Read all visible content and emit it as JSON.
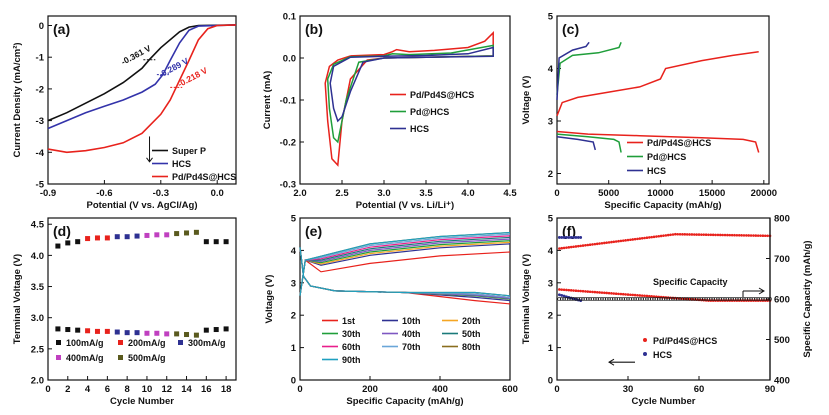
{
  "chart_data": [
    {
      "id": "a",
      "panel_label": "(a)",
      "type": "line",
      "xlabel": "Potential (V vs. AgCl/Ag)",
      "ylabel": "Current Density (mA/cm²)",
      "xlim": [
        -0.9,
        0.1
      ],
      "ylim": [
        -5,
        0.3
      ],
      "xticks": [
        -0.9,
        -0.6,
        -0.3,
        0.0
      ],
      "xtick_labels": [
        "-0.9",
        "-0.6",
        "-0.3",
        "0.0"
      ],
      "yticks": [
        0,
        -1,
        -2,
        -3,
        -4,
        -5
      ],
      "ytick_labels": [
        "0",
        "-1",
        "-2",
        "-3",
        "-4",
        "-5"
      ],
      "legend_position": "bottom-right",
      "series": [
        {
          "name": "Super P",
          "color": "#111111",
          "points": [
            [
              -0.9,
              -3.0
            ],
            [
              -0.8,
              -2.75
            ],
            [
              -0.7,
              -2.45
            ],
            [
              -0.6,
              -2.15
            ],
            [
              -0.5,
              -1.8
            ],
            [
              -0.4,
              -1.35
            ],
            [
              -0.361,
              -1.08
            ],
            [
              -0.3,
              -0.7
            ],
            [
              -0.2,
              -0.2
            ],
            [
              -0.15,
              -0.05
            ],
            [
              -0.1,
              0.0
            ],
            [
              0.1,
              0.02
            ]
          ]
        },
        {
          "name": "HCS",
          "color": "#3333aa",
          "points": [
            [
              -0.9,
              -3.25
            ],
            [
              -0.8,
              -3.0
            ],
            [
              -0.7,
              -2.75
            ],
            [
              -0.6,
              -2.55
            ],
            [
              -0.5,
              -2.35
            ],
            [
              -0.4,
              -2.1
            ],
            [
              -0.33,
              -1.85
            ],
            [
              -0.289,
              -1.55
            ],
            [
              -0.25,
              -1.1
            ],
            [
              -0.2,
              -0.55
            ],
            [
              -0.15,
              -0.15
            ],
            [
              -0.1,
              -0.02
            ],
            [
              0.1,
              0.02
            ]
          ]
        },
        {
          "name": "Pd/Pd4S@HCS",
          "color": "#e8221c",
          "points": [
            [
              -0.9,
              -3.9
            ],
            [
              -0.8,
              -4.0
            ],
            [
              -0.7,
              -3.95
            ],
            [
              -0.6,
              -3.85
            ],
            [
              -0.5,
              -3.7
            ],
            [
              -0.4,
              -3.4
            ],
            [
              -0.3,
              -2.8
            ],
            [
              -0.25,
              -2.35
            ],
            [
              -0.218,
              -1.95
            ],
            [
              -0.15,
              -1.1
            ],
            [
              -0.1,
              -0.45
            ],
            [
              -0.05,
              -0.1
            ],
            [
              0.0,
              0.0
            ],
            [
              0.1,
              0.02
            ]
          ]
        }
      ],
      "annotations": [
        {
          "text": "-0.361 V",
          "x": -0.5,
          "y": -1.25,
          "color": "#111111"
        },
        {
          "text": "-0.289 V",
          "x": -0.3,
          "y": -1.65,
          "color": "#3333aa"
        },
        {
          "text": "-0.218 V",
          "x": -0.2,
          "y": -1.95,
          "color": "#e8221c"
        }
      ]
    },
    {
      "id": "b",
      "panel_label": "(b)",
      "type": "line",
      "xlabel": "Potential (V vs. Li/Li⁺)",
      "ylabel": "Current (mA)",
      "xlim": [
        2.0,
        4.5
      ],
      "ylim": [
        -0.3,
        0.1
      ],
      "xticks": [
        2.0,
        2.5,
        3.0,
        3.5,
        4.0,
        4.5
      ],
      "xtick_labels": [
        "2.0",
        "2.5",
        "3.0",
        "3.5",
        "4.0",
        "4.5"
      ],
      "yticks": [
        0.1,
        0.0,
        -0.1,
        -0.2,
        -0.3
      ],
      "ytick_labels": [
        "0.1",
        "0.0",
        "-0.1",
        "-0.2",
        "-0.3"
      ],
      "legend_position": "center-right",
      "series": [
        {
          "name": "Pd/Pd4S@HCS",
          "color": "#e8221c",
          "points": [
            [
              2.6,
              0.005
            ],
            [
              3.0,
              0.008
            ],
            [
              3.1,
              0.015
            ],
            [
              3.15,
              0.02
            ],
            [
              3.3,
              0.015
            ],
            [
              3.6,
              0.018
            ],
            [
              4.0,
              0.025
            ],
            [
              4.2,
              0.04
            ],
            [
              4.3,
              0.06
            ],
            [
              4.3,
              0.005
            ],
            [
              3.5,
              0.002
            ],
            [
              3.0,
              0.0
            ],
            [
              2.8,
              -0.005
            ],
            [
              2.6,
              -0.05
            ],
            [
              2.5,
              -0.15
            ],
            [
              2.45,
              -0.255
            ],
            [
              2.38,
              -0.24
            ],
            [
              2.33,
              -0.15
            ],
            [
              2.3,
              -0.06
            ],
            [
              2.35,
              -0.02
            ],
            [
              2.45,
              -0.005
            ],
            [
              2.6,
              0.005
            ]
          ]
        },
        {
          "name": "Pd@HCS",
          "color": "#1f9e3a",
          "points": [
            [
              2.6,
              0.003
            ],
            [
              3.0,
              0.005
            ],
            [
              3.1,
              0.01
            ],
            [
              3.3,
              0.008
            ],
            [
              3.8,
              0.012
            ],
            [
              4.3,
              0.03
            ],
            [
              4.3,
              0.005
            ],
            [
              3.5,
              0.002
            ],
            [
              3.0,
              0.0
            ],
            [
              2.7,
              -0.01
            ],
            [
              2.55,
              -0.1
            ],
            [
              2.45,
              -0.2
            ],
            [
              2.4,
              -0.19
            ],
            [
              2.35,
              -0.12
            ],
            [
              2.33,
              -0.05
            ],
            [
              2.4,
              -0.015
            ],
            [
              2.6,
              0.003
            ]
          ]
        },
        {
          "name": "HCS",
          "color": "#2e3192",
          "points": [
            [
              2.6,
              0.002
            ],
            [
              3.0,
              0.004
            ],
            [
              3.5,
              0.006
            ],
            [
              4.0,
              0.01
            ],
            [
              4.3,
              0.025
            ],
            [
              4.3,
              0.004
            ],
            [
              3.5,
              0.002
            ],
            [
              3.0,
              0.0
            ],
            [
              2.75,
              -0.01
            ],
            [
              2.6,
              -0.08
            ],
            [
              2.5,
              -0.14
            ],
            [
              2.45,
              -0.15
            ],
            [
              2.4,
              -0.12
            ],
            [
              2.36,
              -0.06
            ],
            [
              2.4,
              -0.02
            ],
            [
              2.6,
              0.002
            ]
          ]
        }
      ],
      "annotations": []
    },
    {
      "id": "c",
      "panel_label": "(c)",
      "type": "line",
      "xlabel": "Specific Capacity (mAh/g)",
      "ylabel": "Voltage (V)",
      "xlim": [
        0,
        20500
      ],
      "ylim": [
        1.8,
        5.0
      ],
      "xticks": [
        0,
        5000,
        10000,
        15000,
        20000
      ],
      "xtick_labels": [
        "0",
        "5000",
        "10000",
        "15000",
        "20000"
      ],
      "yticks": [
        2,
        3,
        4,
        5
      ],
      "ytick_labels": [
        "2",
        "3",
        "4",
        "5"
      ],
      "legend_position": "bottom-center",
      "series": [
        {
          "name": "Pd/Pd4S@HCS",
          "color": "#e8221c",
          "points": [
            [
              0,
              3.1
            ],
            [
              500,
              3.35
            ],
            [
              2000,
              3.45
            ],
            [
              5000,
              3.55
            ],
            [
              8000,
              3.65
            ],
            [
              10000,
              3.8
            ],
            [
              10500,
              4.0
            ],
            [
              14000,
              4.15
            ],
            [
              17000,
              4.25
            ],
            [
              19500,
              4.32
            ]
          ]
        },
        {
          "name": "Pd/Pd4S@HCS",
          "color": "#e8221c",
          "points": [
            [
              0,
              2.8
            ],
            [
              3000,
              2.75
            ],
            [
              8000,
              2.72
            ],
            [
              14000,
              2.68
            ],
            [
              18000,
              2.65
            ],
            [
              19200,
              2.6
            ],
            [
              19500,
              2.4
            ]
          ]
        },
        {
          "name": "Pd@HCS",
          "color": "#1f9e3a",
          "points": [
            [
              0,
              3.5
            ],
            [
              300,
              4.1
            ],
            [
              1500,
              4.25
            ],
            [
              4000,
              4.3
            ],
            [
              6000,
              4.4
            ],
            [
              6200,
              4.5
            ]
          ]
        },
        {
          "name": "Pd@HCS",
          "color": "#1f9e3a",
          "points": [
            [
              0,
              2.75
            ],
            [
              3000,
              2.7
            ],
            [
              5500,
              2.65
            ],
            [
              6000,
              2.6
            ],
            [
              6200,
              2.4
            ]
          ]
        },
        {
          "name": "HCS",
          "color": "#2e3192",
          "points": [
            [
              0,
              3.4
            ],
            [
              200,
              4.2
            ],
            [
              1500,
              4.35
            ],
            [
              2800,
              4.42
            ],
            [
              3100,
              4.5
            ]
          ]
        },
        {
          "name": "HCS",
          "color": "#2e3192",
          "points": [
            [
              0,
              2.7
            ],
            [
              2000,
              2.65
            ],
            [
              3500,
              2.6
            ],
            [
              3700,
              2.45
            ]
          ]
        }
      ],
      "legend_entries": [
        "Pd/Pd4S@HCS",
        "Pd@HCS",
        "HCS"
      ]
    },
    {
      "id": "d",
      "panel_label": "(d)",
      "type": "scatter",
      "xlabel": "Cycle Number",
      "ylabel": "Terminal Voltage (V)",
      "xlim": [
        0,
        19
      ],
      "ylim": [
        2.0,
        4.6
      ],
      "xticks": [
        0,
        2,
        4,
        6,
        8,
        10,
        12,
        14,
        16,
        18
      ],
      "xtick_labels": [
        "0",
        "2",
        "4",
        "6",
        "8",
        "10",
        "12",
        "14",
        "16",
        "18"
      ],
      "yticks": [
        2.0,
        2.5,
        3.0,
        3.5,
        4.0,
        4.5
      ],
      "ytick_labels": [
        "2.0",
        "2.5",
        "3.0",
        "3.5",
        "4.0",
        "4.5"
      ],
      "legend_position": "bottom",
      "series": [
        {
          "name": "100mA/g",
          "color": "#111111",
          "x": [
            1,
            2,
            3,
            16,
            17,
            18
          ],
          "charge": [
            4.15,
            4.2,
            4.22,
            4.22,
            4.22,
            4.22
          ],
          "discharge": [
            2.82,
            2.81,
            2.8,
            2.8,
            2.81,
            2.82
          ]
        },
        {
          "name": "200mA/g",
          "color": "#e8221c",
          "x": [
            4,
            5,
            6
          ],
          "charge": [
            4.27,
            4.28,
            4.28
          ],
          "discharge": [
            2.79,
            2.78,
            2.78
          ]
        },
        {
          "name": "300mA/g",
          "color": "#2e3192",
          "x": [
            7,
            8,
            9
          ],
          "charge": [
            4.3,
            4.3,
            4.31
          ],
          "discharge": [
            2.77,
            2.76,
            2.76
          ]
        },
        {
          "name": "400mA/g",
          "color": "#c040c0",
          "x": [
            10,
            11,
            12
          ],
          "charge": [
            4.32,
            4.33,
            4.33
          ],
          "discharge": [
            2.75,
            2.75,
            2.74
          ]
        },
        {
          "name": "500mA/g",
          "color": "#5a5a1e",
          "x": [
            13,
            14,
            15
          ],
          "charge": [
            4.35,
            4.36,
            4.37
          ],
          "discharge": [
            2.74,
            2.73,
            2.72
          ]
        }
      ]
    },
    {
      "id": "e",
      "panel_label": "(e)",
      "type": "line",
      "xlabel": "Specific Capacity (mAh/g)",
      "ylabel": "Voltage (V)",
      "xlim": [
        0,
        600
      ],
      "ylim": [
        0,
        5
      ],
      "xticks": [
        0,
        200,
        400,
        600
      ],
      "xtick_labels": [
        "0",
        "200",
        "400",
        "600"
      ],
      "yticks": [
        0,
        1,
        2,
        3,
        4,
        5
      ],
      "ytick_labels": [
        "0",
        "1",
        "2",
        "3",
        "4",
        "5"
      ],
      "legend_position": "bottom",
      "legend_columns": 3,
      "series": [
        {
          "name": "1st",
          "color": "#e8221c",
          "charge_end": 3.95,
          "discharge_end": 2.35
        },
        {
          "name": "10th",
          "color": "#2e3192",
          "charge_end": 4.2,
          "discharge_end": 2.45
        },
        {
          "name": "20th",
          "color": "#f5a623",
          "charge_end": 4.25,
          "discharge_end": 2.5
        },
        {
          "name": "30th",
          "color": "#1f9e3a",
          "charge_end": 4.3,
          "discharge_end": 2.5
        },
        {
          "name": "40th",
          "color": "#7e57c2",
          "charge_end": 4.35,
          "discharge_end": 2.52
        },
        {
          "name": "50th",
          "color": "#1a7a7a",
          "charge_end": 4.4,
          "discharge_end": 2.55
        },
        {
          "name": "60th",
          "color": "#e91e8c",
          "charge_end": 4.45,
          "discharge_end": 2.55
        },
        {
          "name": "70th",
          "color": "#6aa6d8",
          "charge_end": 4.5,
          "discharge_end": 2.55
        },
        {
          "name": "80th",
          "color": "#8a6d1e",
          "charge_end": 4.55,
          "discharge_end": 2.6
        },
        {
          "name": "90th",
          "color": "#1fa0c0",
          "charge_end": 4.55,
          "discharge_end": 2.6
        }
      ],
      "x_end": 600
    },
    {
      "id": "f",
      "panel_label": "(f)",
      "type": "scatter",
      "xlabel": "Cycle Number",
      "ylabel": "Terminal Voltage (V)",
      "y2label": "Specific Capacity (mAh/g)",
      "xlim": [
        0,
        90
      ],
      "ylim": [
        0,
        5
      ],
      "y2lim": [
        400,
        800
      ],
      "xticks": [
        0,
        30,
        60,
        90
      ],
      "xtick_labels": [
        "0",
        "30",
        "60",
        "90"
      ],
      "yticks": [
        0,
        1,
        2,
        3,
        4,
        5
      ],
      "ytick_labels": [
        "0",
        "1",
        "2",
        "3",
        "4",
        "5"
      ],
      "y2ticks": [
        400,
        500,
        600,
        700,
        800
      ],
      "y2tick_labels": [
        "400",
        "500",
        "600",
        "700",
        "800"
      ],
      "capacity_label": "Specific Capacity",
      "capacity_value": 600,
      "series": [
        {
          "name": "Pd/Pd4S@HCS",
          "color": "#e8221c",
          "charge_start": 4.05,
          "charge_mid": 4.5,
          "charge_end": 4.45,
          "discharge_start": 2.8,
          "discharge_end": 2.45,
          "cycles": 90
        },
        {
          "name": "HCS",
          "color": "#2e3192",
          "charge_level": 4.4,
          "discharge_start": 2.65,
          "discharge_end": 2.45,
          "cycles": 10
        }
      ]
    }
  ]
}
